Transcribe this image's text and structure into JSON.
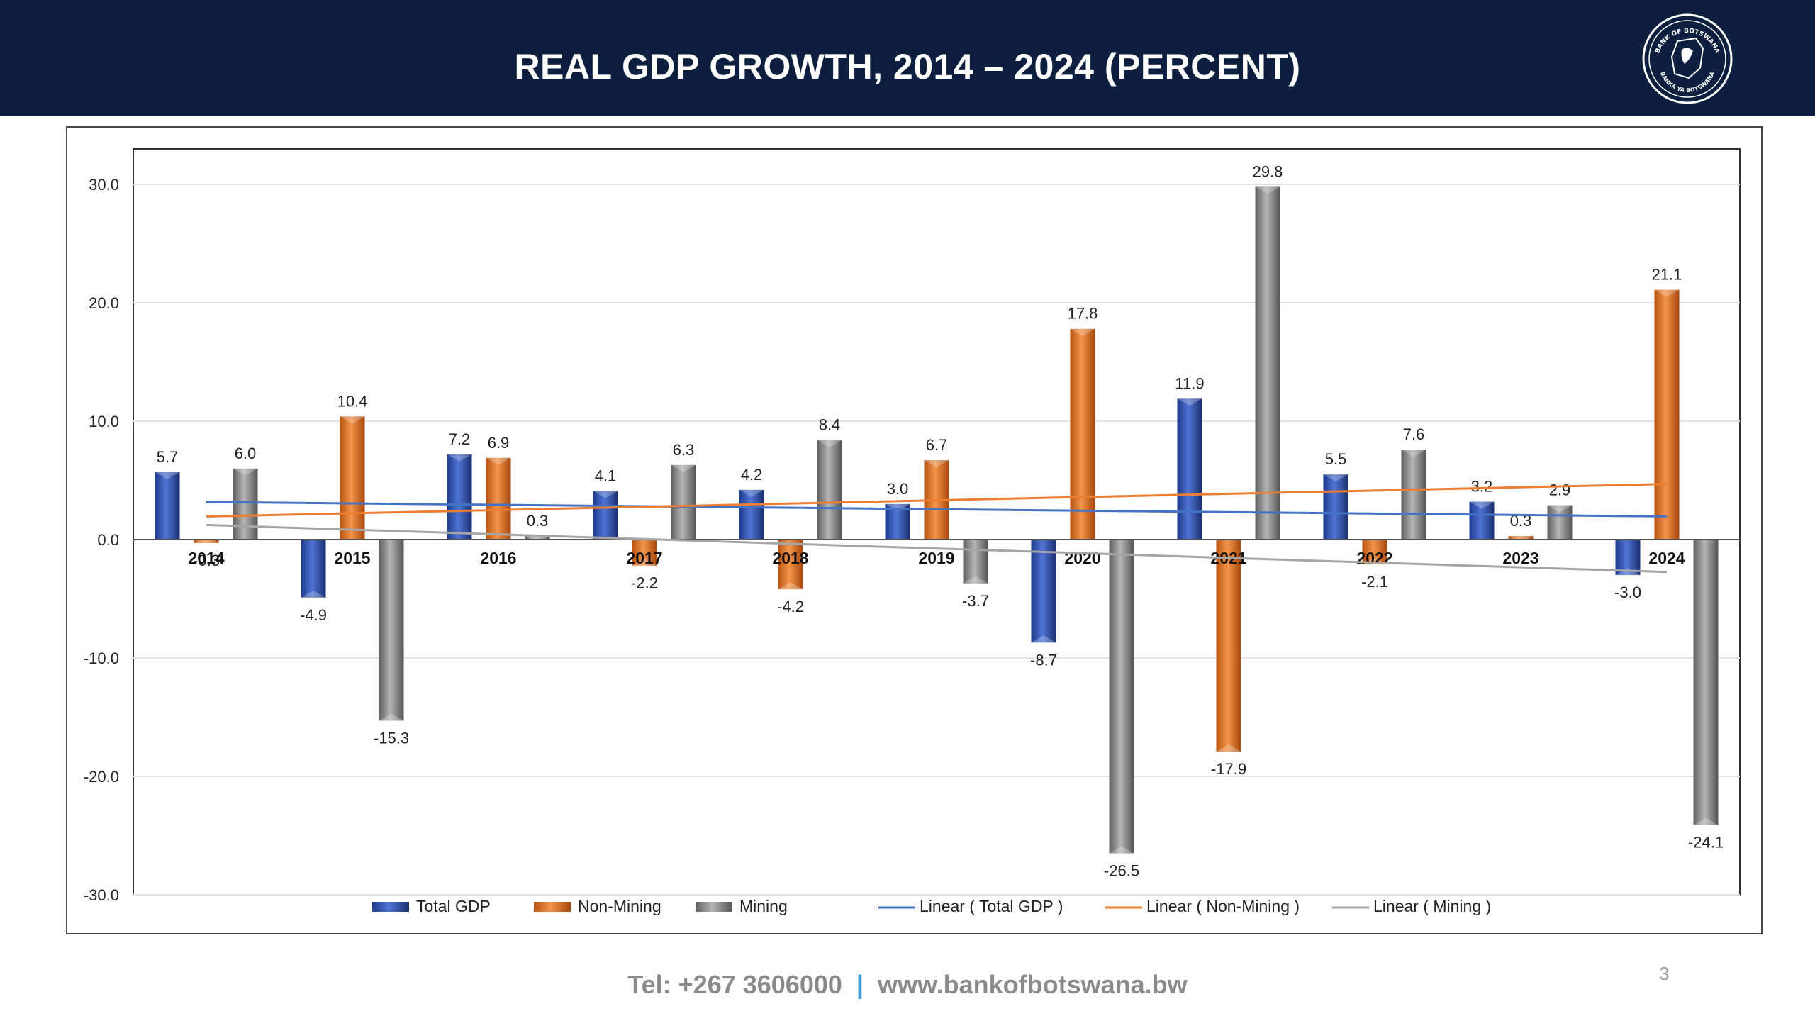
{
  "slide": {
    "title": "REAL GDP GROWTH, 2014 – 2024 (PERCENT)",
    "logo": "bank-of-botswana-seal",
    "logo_text_top": "BANK OF BOTSWANA",
    "logo_text_bottom": "BANKA YA BOTSWANA",
    "footer_tel": "Tel: +267 3606000",
    "footer_sep": "|",
    "footer_web": "www.bankofbotswana.bw",
    "page_number": "3"
  },
  "colors": {
    "header_bg": "#0c1f3f",
    "total_gdp": "#2e4fa8",
    "non_mining": "#e5782a",
    "mining": "#8c8c8c",
    "trend_total": "#4472c4",
    "trend_non_mining": "#ed7d31",
    "trend_mining": "#a5a5a5"
  },
  "chart_data": {
    "type": "bar",
    "title": "",
    "xlabel": "",
    "ylabel": "",
    "ylim": [
      -30,
      30
    ],
    "yticks": [
      "30.0",
      "20.0",
      "10.0",
      "0.0",
      "-10.0",
      "-20.0",
      "-30.0"
    ],
    "ytick_values": [
      30,
      20,
      10,
      0,
      -10,
      -20,
      -30
    ],
    "grid": true,
    "legend_position": "bottom",
    "categories": [
      "2014",
      "2015",
      "2016",
      "2017",
      "2018",
      "2019",
      "2020",
      "2021",
      "2022",
      "2023",
      "2024"
    ],
    "series": [
      {
        "name": "Total GDP",
        "values": [
          5.7,
          -4.9,
          7.2,
          4.1,
          4.2,
          3.0,
          -8.7,
          11.9,
          5.5,
          3.2,
          -3.0
        ],
        "labels": [
          "5.7",
          "-4.9",
          "7.2",
          "4.1",
          "4.2",
          "3.0",
          "-8.7",
          "11.9",
          "5.5",
          "3.2",
          "-3.0"
        ]
      },
      {
        "name": "Non-Mining",
        "values": [
          -0.3,
          10.4,
          6.9,
          -2.2,
          -4.2,
          6.7,
          17.8,
          -17.9,
          -2.1,
          0.3,
          21.1
        ],
        "labels": [
          "-0.3",
          "10.4",
          "6.9",
          "-2.2",
          "-4.2",
          "6.7",
          "17.8",
          "-17.9",
          "-2.1",
          "0.3",
          "21.1"
        ]
      },
      {
        "name": "Mining",
        "values": [
          6.0,
          -15.3,
          0.3,
          6.3,
          8.4,
          -3.7,
          -26.5,
          29.8,
          7.6,
          2.9,
          -24.1
        ],
        "labels": [
          "6.0",
          "-15.3",
          "0.3",
          "6.3",
          "8.4",
          "-3.7",
          "-26.5",
          "29.8",
          "7.6",
          "2.9",
          "-24.1"
        ]
      }
    ],
    "trendlines": [
      {
        "name": "Linear ( Total GDP )",
        "series": "Total GDP"
      },
      {
        "name": "Linear ( Non-Mining )",
        "series": "Non-Mining"
      },
      {
        "name": "Linear ( Mining  )",
        "series": "Mining"
      }
    ]
  }
}
